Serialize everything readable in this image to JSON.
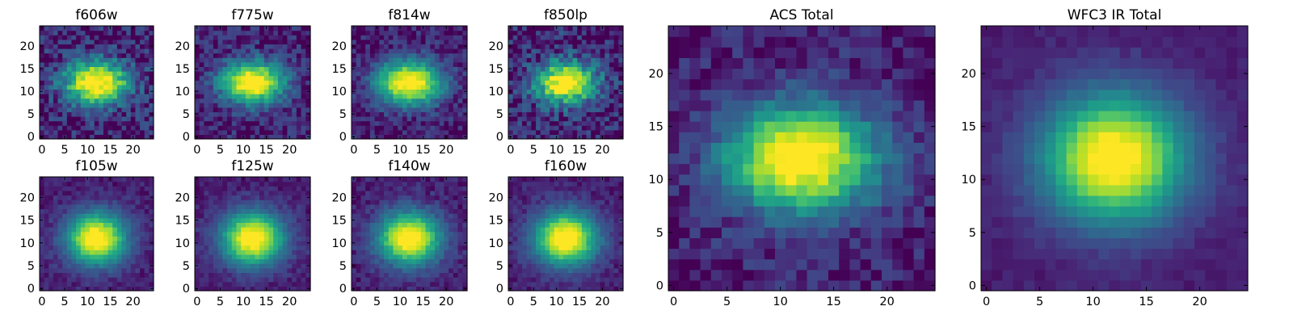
{
  "chart_data": [
    {
      "type": "heatmap",
      "title": "f606w",
      "colormap": "viridis",
      "xticks": [
        0,
        5,
        10,
        15,
        20
      ],
      "yticks": [
        0,
        5,
        10,
        15,
        20
      ],
      "xlim": [
        0,
        25
      ],
      "ylim": [
        0,
        25
      ],
      "grid_size": 25,
      "peak_center": [
        12,
        12
      ],
      "noise": 0.16,
      "sigma_x": 5.0,
      "sigma_y": 3.3
    },
    {
      "type": "heatmap",
      "title": "f775w",
      "colormap": "viridis",
      "xticks": [
        0,
        5,
        10,
        15,
        20
      ],
      "yticks": [
        0,
        5,
        10,
        15,
        20
      ],
      "xlim": [
        0,
        25
      ],
      "ylim": [
        0,
        25
      ],
      "grid_size": 25,
      "peak_center": [
        12,
        12
      ],
      "noise": 0.12,
      "sigma_x": 4.7,
      "sigma_y": 3.2
    },
    {
      "type": "heatmap",
      "title": "f814w",
      "colormap": "viridis",
      "xticks": [
        0,
        5,
        10,
        15,
        20
      ],
      "yticks": [
        0,
        5,
        10,
        15,
        20
      ],
      "xlim": [
        0,
        25
      ],
      "ylim": [
        0,
        25
      ],
      "grid_size": 25,
      "peak_center": [
        12,
        12
      ],
      "noise": 0.1,
      "sigma_x": 4.8,
      "sigma_y": 3.3
    },
    {
      "type": "heatmap",
      "title": "f850lp",
      "colormap": "viridis",
      "xticks": [
        0,
        5,
        10,
        15,
        20
      ],
      "yticks": [
        0,
        5,
        10,
        15,
        20
      ],
      "xlim": [
        0,
        25
      ],
      "ylim": [
        0,
        25
      ],
      "grid_size": 25,
      "peak_center": [
        12,
        12
      ],
      "noise": 0.18,
      "sigma_x": 4.6,
      "sigma_y": 3.2
    },
    {
      "type": "heatmap",
      "title": "f105w",
      "colormap": "viridis",
      "xticks": [
        0,
        5,
        10,
        15,
        20
      ],
      "yticks": [
        0,
        5,
        10,
        15,
        20
      ],
      "xlim": [
        0,
        25
      ],
      "ylim": [
        0,
        25
      ],
      "grid_size": 25,
      "peak_center": [
        12,
        11
      ],
      "noise": 0.05,
      "sigma_x": 4.4,
      "sigma_y": 3.8
    },
    {
      "type": "heatmap",
      "title": "f125w",
      "colormap": "viridis",
      "xticks": [
        0,
        5,
        10,
        15,
        20
      ],
      "yticks": [
        0,
        5,
        10,
        15,
        20
      ],
      "xlim": [
        0,
        25
      ],
      "ylim": [
        0,
        25
      ],
      "grid_size": 25,
      "peak_center": [
        12,
        11
      ],
      "noise": 0.05,
      "sigma_x": 4.5,
      "sigma_y": 3.9
    },
    {
      "type": "heatmap",
      "title": "f140w",
      "colormap": "viridis",
      "xticks": [
        0,
        5,
        10,
        15,
        20
      ],
      "yticks": [
        0,
        5,
        10,
        15,
        20
      ],
      "xlim": [
        0,
        25
      ],
      "ylim": [
        0,
        25
      ],
      "grid_size": 25,
      "peak_center": [
        12,
        11
      ],
      "noise": 0.06,
      "sigma_x": 4.5,
      "sigma_y": 3.9
    },
    {
      "type": "heatmap",
      "title": "f160w",
      "colormap": "viridis",
      "xticks": [
        0,
        5,
        10,
        15,
        20
      ],
      "yticks": [
        0,
        5,
        10,
        15,
        20
      ],
      "xlim": [
        0,
        25
      ],
      "ylim": [
        0,
        25
      ],
      "grid_size": 25,
      "peak_center": [
        12,
        11
      ],
      "noise": 0.05,
      "sigma_x": 4.6,
      "sigma_y": 4.0
    },
    {
      "type": "heatmap",
      "title": "ACS Total",
      "colormap": "viridis",
      "xticks": [
        0,
        5,
        10,
        15,
        20
      ],
      "yticks": [
        0,
        5,
        10,
        15,
        20
      ],
      "xlim": [
        0,
        25
      ],
      "ylim": [
        0,
        25
      ],
      "grid_size": 25,
      "peak_center": [
        12,
        12
      ],
      "noise": 0.09,
      "sigma_x": 4.8,
      "sigma_y": 3.4
    },
    {
      "type": "heatmap",
      "title": "WFC3 IR Total",
      "colormap": "viridis",
      "xticks": [
        0,
        5,
        10,
        15,
        20
      ],
      "yticks": [
        0,
        5,
        10,
        15,
        20
      ],
      "xlim": [
        0,
        25
      ],
      "ylim": [
        0,
        25
      ],
      "grid_size": 25,
      "peak_center": [
        12,
        12
      ],
      "noise": 0.02,
      "sigma_x": 4.5,
      "sigma_y": 4.0
    }
  ]
}
